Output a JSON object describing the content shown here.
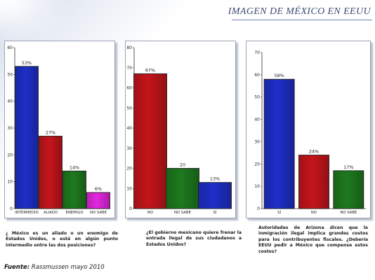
{
  "header": {
    "title": "IMAGEN DE MÉXICO EN EEUU"
  },
  "captions": [
    "¿ México es un aliado o un enemigo de Estados Unidos, o está en algún punto intermedio entre las dos posiciones?",
    "¿El gobierno mexicano quiere frenar la entrada ilegal de sus ciudadanos a Estados Unidos?",
    "Autoridades de Arizona dicen que la inmigración ilegal implica grandes costos para los contribuyentes fiscales. ¿Debería EEUU pedir a México que compense estos costos?"
  ],
  "source": {
    "label": "Fuente:",
    "text": "Rassmussen mayo 2010"
  },
  "colors": {
    "blue": "#1e2fc8",
    "red": "#c4151b",
    "green": "#1e7a1e",
    "magenta": "#e326e0",
    "title": "#3a4a72"
  },
  "chart_data": [
    {
      "type": "bar",
      "categories": [
        "INTERMEDIO",
        "ALIADO",
        "ENEMIGO",
        "NO SABE"
      ],
      "values": [
        53,
        27,
        14,
        6
      ],
      "value_labels": [
        "53%",
        "27%",
        "14%",
        "6%"
      ],
      "bar_colors": [
        "blue",
        "red",
        "green",
        "magenta"
      ],
      "ylim": [
        0,
        60
      ],
      "yticks": [
        0,
        10,
        20,
        30,
        40,
        50,
        60
      ],
      "title": "",
      "xlabel": "",
      "ylabel": "",
      "grid": false,
      "legend": "none"
    },
    {
      "type": "bar",
      "categories": [
        "NO",
        "NO SABE",
        "SÍ"
      ],
      "values": [
        67,
        20,
        13
      ],
      "value_labels": [
        "67%",
        "20",
        "13%"
      ],
      "bar_colors": [
        "red",
        "green",
        "blue"
      ],
      "ylim": [
        0,
        80
      ],
      "yticks": [
        0,
        10,
        20,
        30,
        40,
        50,
        60,
        70,
        80
      ],
      "title": "",
      "xlabel": "",
      "ylabel": "",
      "grid": false,
      "legend": "none"
    },
    {
      "type": "bar",
      "categories": [
        "SÍ",
        "NO",
        "NO SABE"
      ],
      "values": [
        58,
        24,
        17
      ],
      "value_labels": [
        "58%",
        "24%",
        "17%"
      ],
      "bar_colors": [
        "blue",
        "red",
        "green"
      ],
      "ylim": [
        0,
        70
      ],
      "yticks": [
        0,
        10,
        20,
        30,
        40,
        50,
        60,
        70
      ],
      "title": "",
      "xlabel": "",
      "ylabel": "",
      "grid": false,
      "legend": "none"
    }
  ]
}
